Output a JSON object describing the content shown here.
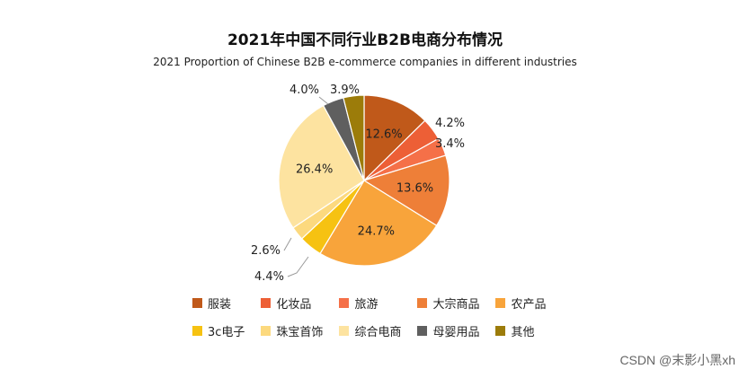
{
  "chart_data": {
    "type": "pie",
    "title": "2021年中国不同行业B2B电商分布情况",
    "subtitle": "2021 Proportion of Chinese B2B e-commerce companies in different industries",
    "slices": [
      {
        "label": "服装",
        "value": 12.6,
        "display": "12.6%",
        "color": "#C0591A"
      },
      {
        "label": "化妆品",
        "value": 4.2,
        "display": "4.2%",
        "color": "#ED5F36"
      },
      {
        "label": "旅游",
        "value": 3.4,
        "display": "3.4%",
        "color": "#F57048"
      },
      {
        "label": "大宗商品",
        "value": 13.6,
        "display": "13.6%",
        "color": "#EE7F38"
      },
      {
        "label": "农产品",
        "value": 24.7,
        "display": "24.7%",
        "color": "#F8A43B"
      },
      {
        "label": "3c电子",
        "value": 4.4,
        "display": "4.4%",
        "color": "#F6C212"
      },
      {
        "label": "珠宝首饰",
        "value": 2.6,
        "display": "2.6%",
        "color": "#FCD97E"
      },
      {
        "label": "综合电商",
        "value": 26.4,
        "display": "26.4%",
        "color": "#FDE3A0"
      },
      {
        "label": "母婴用品",
        "value": 4.0,
        "display": "4.0%",
        "color": "#5F5F5F"
      },
      {
        "label": "其他",
        "value": 3.9,
        "display": "3.9%",
        "color": "#9C7C0A"
      }
    ],
    "legend_position": "bottom"
  },
  "watermark": "CSDN @末影小黑xh"
}
